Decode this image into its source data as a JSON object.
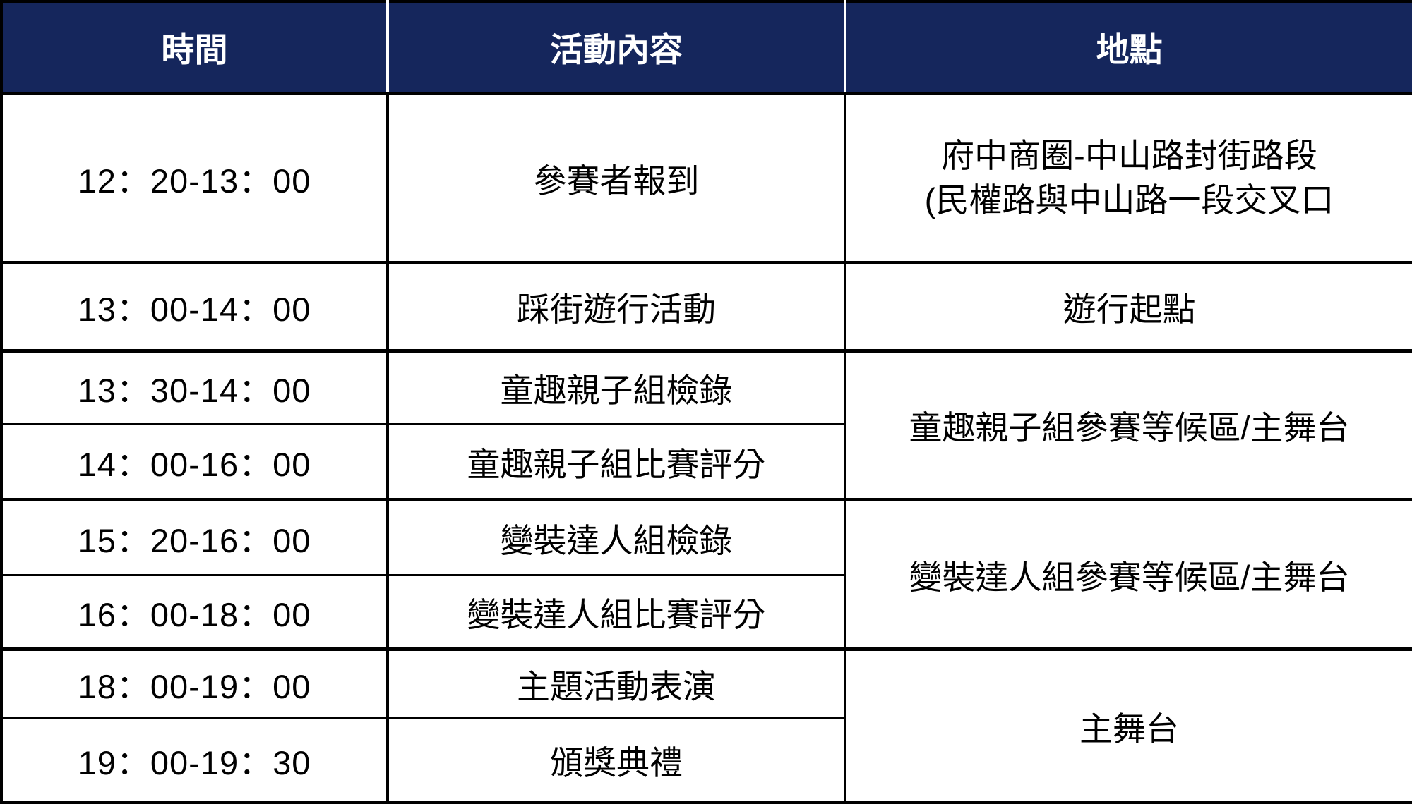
{
  "colors": {
    "header_bg": "#15265C",
    "header_text": "#FFFFFF",
    "body_text": "#000000",
    "border": "#000000",
    "header_divider": "#FFFFFF"
  },
  "table": {
    "headers": {
      "time": "時間",
      "activity": "活動內容",
      "location": "地點"
    },
    "rows": [
      {
        "time": "12：20-13：00",
        "activity": "參賽者報到",
        "location_lines": [
          "府中商圈-中山路封街路段",
          "(民權路與中山路一段交叉口"
        ]
      },
      {
        "time": "13：00-14：00",
        "activity": "踩街遊行活動",
        "location": "遊行起點"
      },
      {
        "time": "13：30-14：00",
        "activity": "童趣親子組檢錄",
        "location": "童趣親子組參賽等候區/主舞台"
      },
      {
        "time": "14：00-16：00",
        "activity": "童趣親子組比賽評分"
      },
      {
        "time": "15：20-16：00",
        "activity": "變裝達人組檢錄",
        "location": "變裝達人組參賽等候區/主舞台"
      },
      {
        "time": "16：00-18：00",
        "activity": "變裝達人組比賽評分"
      },
      {
        "time": "18：00-19：00",
        "activity": "主題活動表演",
        "location": "主舞台"
      },
      {
        "time": "19：00-19：30",
        "activity": "頒獎典禮"
      }
    ]
  }
}
